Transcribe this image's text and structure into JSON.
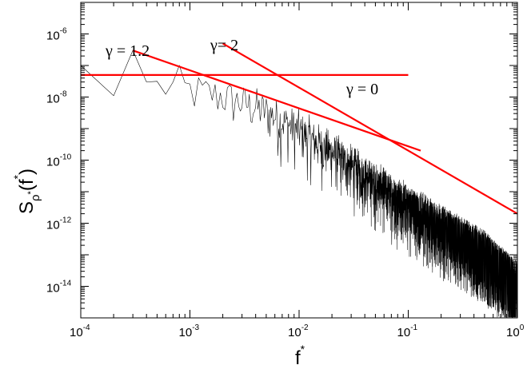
{
  "chart_data": {
    "type": "line",
    "x_scale": "log",
    "y_scale": "log",
    "xlim": [
      0.0001,
      1
    ],
    "ylim": [
      1e-15,
      1e-05
    ],
    "x_ticks": [
      {
        "value": 0.0001,
        "base": "10",
        "exp": "-4"
      },
      {
        "value": 0.001,
        "base": "10",
        "exp": "-3"
      },
      {
        "value": 0.01,
        "base": "10",
        "exp": "-2"
      },
      {
        "value": 0.1,
        "base": "10",
        "exp": "-1"
      },
      {
        "value": 1,
        "base": "10",
        "exp": "0"
      }
    ],
    "y_ticks": [
      {
        "value": 1e-14,
        "base": "10",
        "exp": "-14"
      },
      {
        "value": 1e-12,
        "base": "10",
        "exp": "-12"
      },
      {
        "value": 1e-10,
        "base": "10",
        "exp": "-10"
      },
      {
        "value": 1e-08,
        "base": "10",
        "exp": "-8"
      },
      {
        "value": 1e-06,
        "base": "10",
        "exp": "-6"
      }
    ],
    "xlabel": {
      "main": "f",
      "sup": "*"
    },
    "ylabel": {
      "main": "S",
      "sub": "ρ",
      "subsup": "*",
      "arg_open": "(f",
      "arg_sup": "*",
      "arg_close": ")"
    },
    "grid": false,
    "spectrum": {
      "name": "",
      "color": "#000000",
      "f_min": 0.0001,
      "f_max": 1,
      "df": 0.0001,
      "envelope": [
        [
          0.0001,
          1e-07
        ],
        [
          0.0002,
          1.1e-08
        ],
        [
          0.0003,
          3e-07
        ],
        [
          0.0004,
          3e-08
        ],
        [
          0.0007,
          3e-08
        ],
        [
          0.002,
          1.5e-08
        ],
        [
          0.005,
          5e-09
        ],
        [
          0.01,
          1.2e-09
        ],
        [
          0.02,
          2.5e-10
        ],
        [
          0.05,
          2.5e-11
        ],
        [
          0.1,
          5e-12
        ],
        [
          0.2,
          1e-12
        ],
        [
          0.5,
          1.5e-13
        ],
        [
          1,
          1.5e-14
        ]
      ]
    },
    "fit_lines": [
      {
        "label": "γ = 0",
        "gamma": 0,
        "x": [
          0.0001,
          0.1
        ],
        "y": [
          5e-08,
          5e-08
        ],
        "color": "#ff0000"
      },
      {
        "label": "γ = 1.2",
        "gamma": 1.2,
        "x": [
          0.0003,
          0.13
        ],
        "y": [
          3e-07,
          2e-10
        ],
        "color": "#ff0000"
      },
      {
        "label": "γ= 2",
        "gamma": 2,
        "x": [
          0.002,
          1
        ],
        "y": [
          5e-07,
          2e-12
        ],
        "color": "#ff0000"
      }
    ]
  }
}
